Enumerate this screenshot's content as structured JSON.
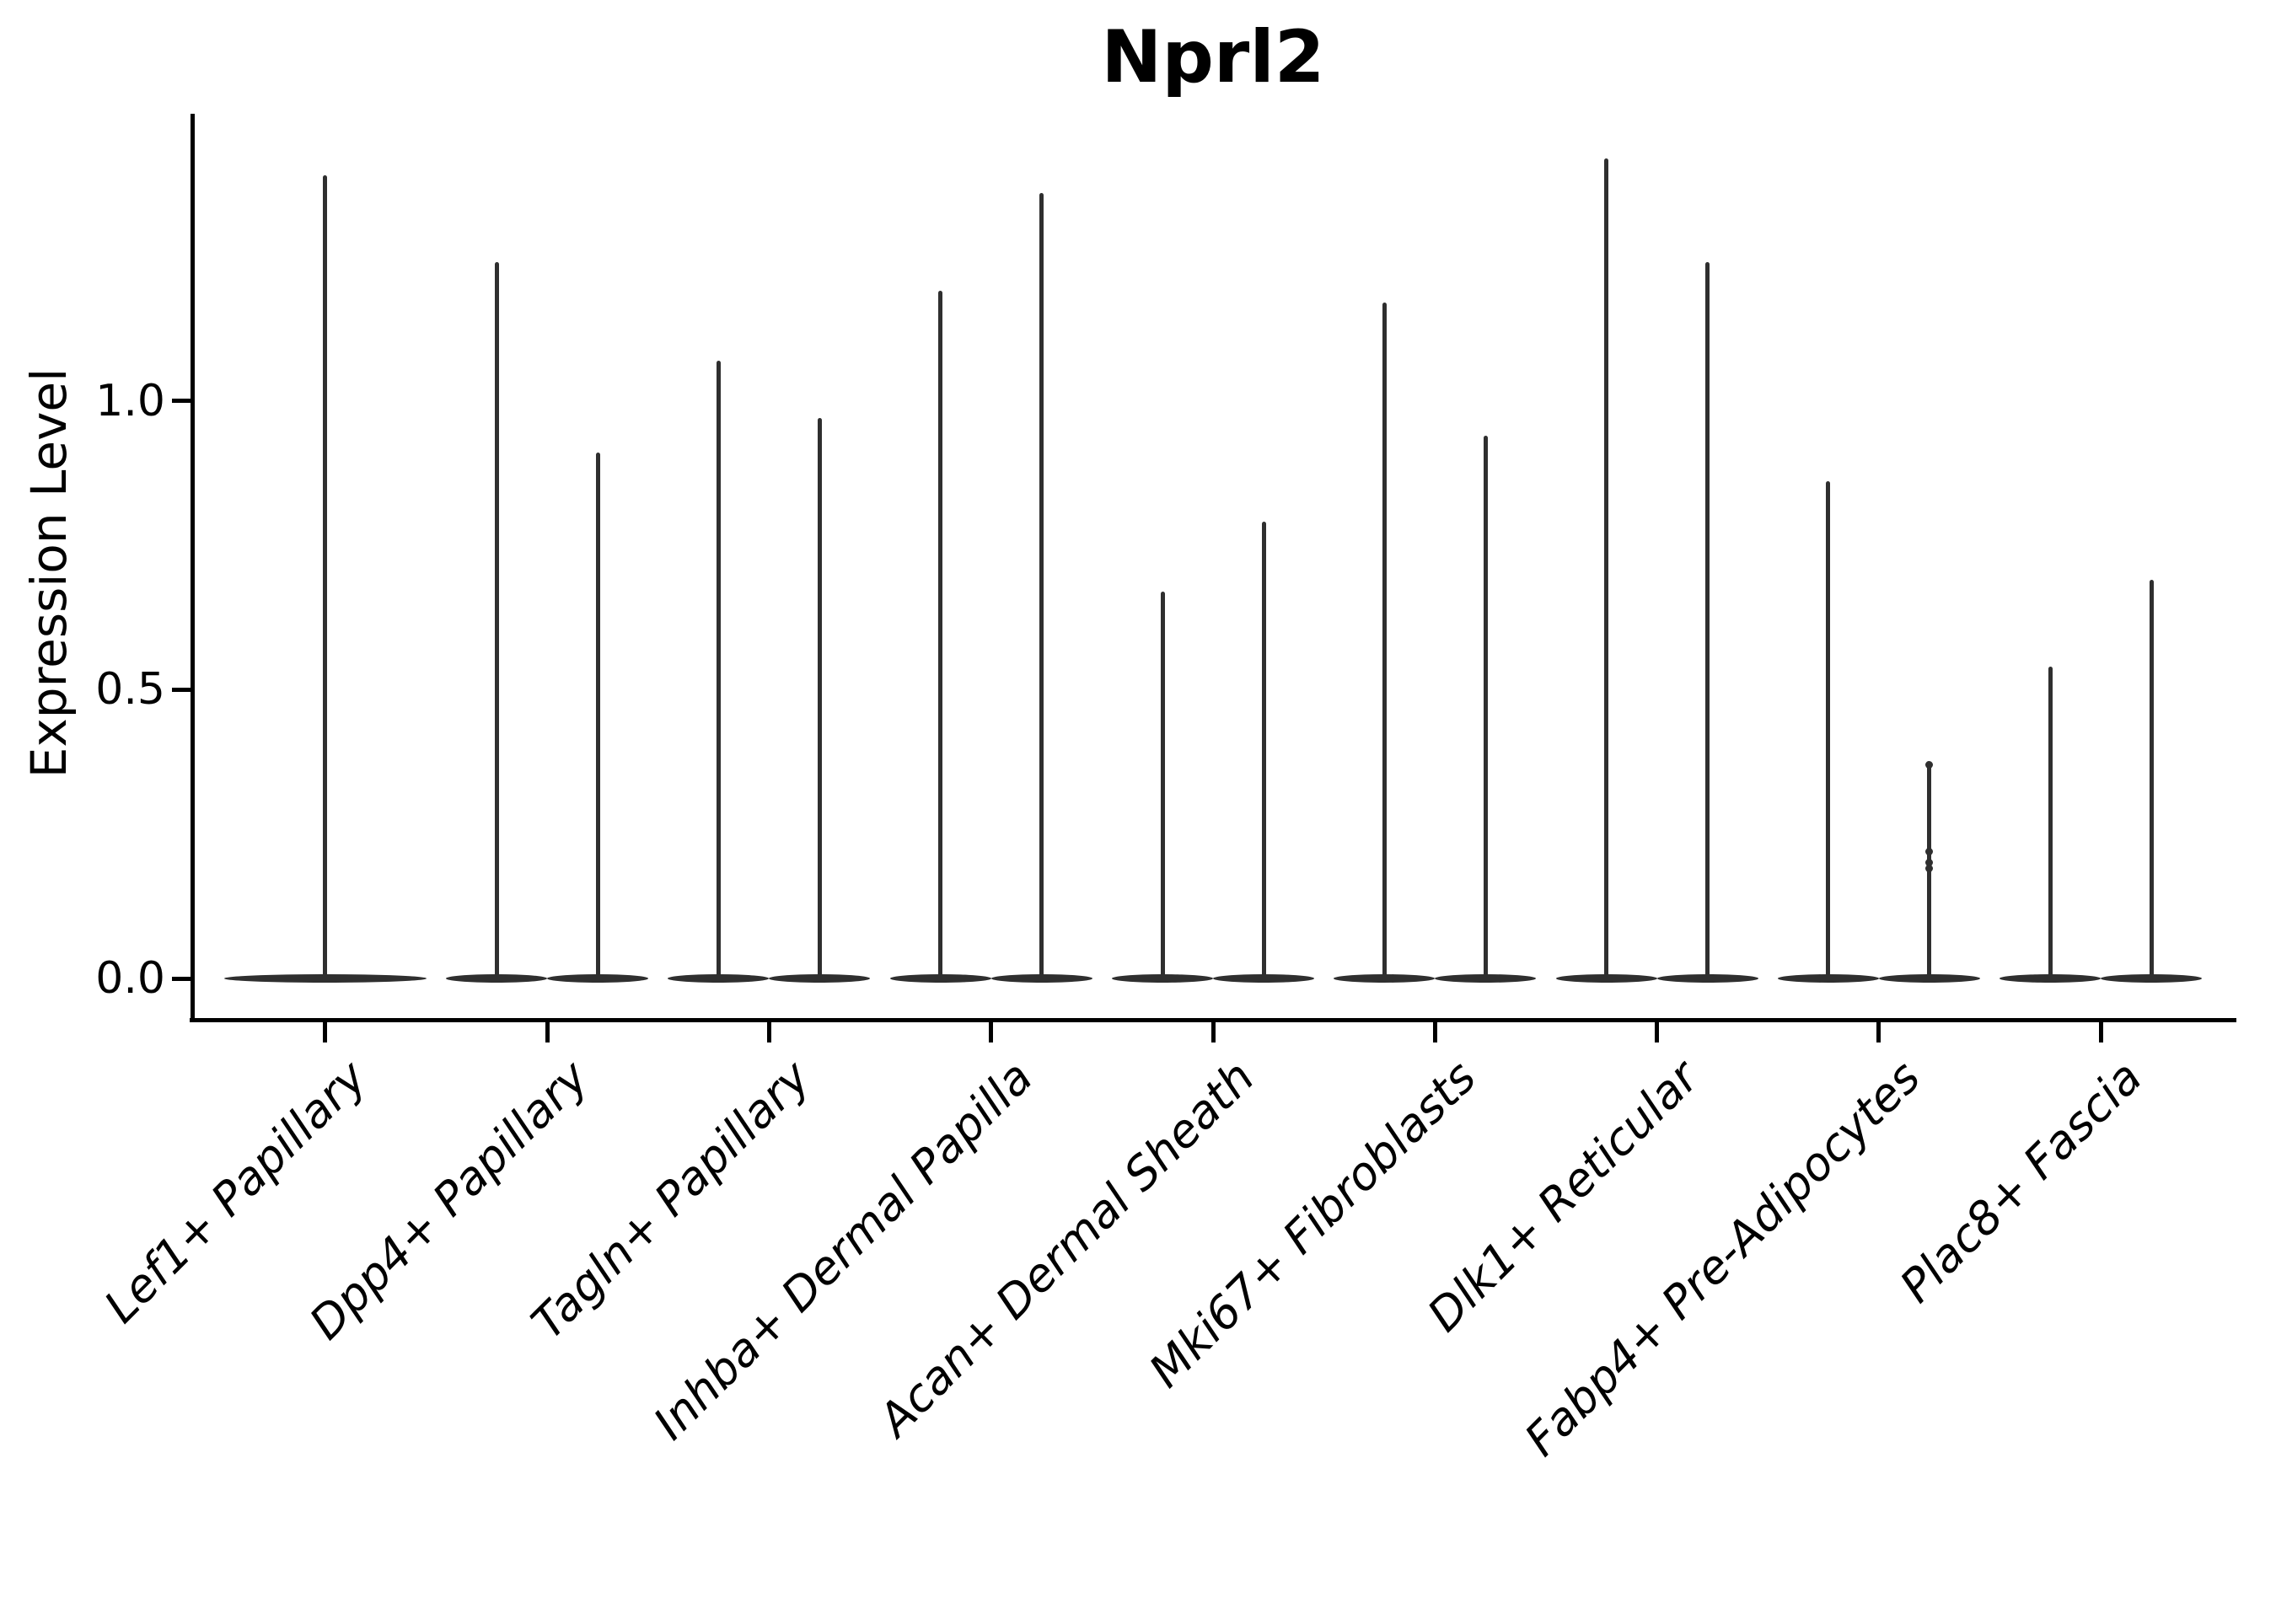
{
  "chart_data": {
    "type": "violin",
    "title": "Nprl2",
    "xlabel": "",
    "ylabel": "Expression Level",
    "ylim": [
      -0.07,
      1.5
    ],
    "yticks": [
      0.0,
      0.5,
      1.0
    ],
    "ytick_labels": [
      "0.0",
      "0.5",
      "1.0"
    ],
    "grid": false,
    "legend": "none",
    "x_tick_label_rotation_deg": 45,
    "x_tick_label_style": "italic",
    "categories": [
      "Lef1+ Papillary",
      "Dpp4+ Papillary",
      "Tagln+ Papillary",
      "Inhba+ Dermal Papilla",
      "Acan+ Dermal Sheath",
      "Mki67+ Fibroblasts",
      "Dlk1+ Reticular",
      "Fabp4+ Pre-Adipocytes",
      "Plac8+ Fascia"
    ],
    "description": "Violin plot of Nprl2 expression per fibroblast subtype; expression is near zero for most cells, so each violin renders as a wide flat base at 0 with a thin central spike rising to the maximum expression value. Categories 2-9 each contain two side-by-side violins; category 1 contains a single full-width violin.",
    "violins": [
      {
        "category": "Lef1+ Papillary",
        "spike_maxima": [
          1.39
        ]
      },
      {
        "category": "Dpp4+ Papillary",
        "spike_maxima": [
          1.24,
          0.91
        ]
      },
      {
        "category": "Tagln+ Papillary",
        "spike_maxima": [
          1.07,
          0.97
        ]
      },
      {
        "category": "Inhba+ Dermal Papilla",
        "spike_maxima": [
          1.19,
          1.36
        ]
      },
      {
        "category": "Acan+ Dermal Sheath",
        "spike_maxima": [
          0.67,
          0.79
        ]
      },
      {
        "category": "Mki67+ Fibroblasts",
        "spike_maxima": [
          1.17,
          0.94
        ]
      },
      {
        "category": "Dlk1+ Reticular",
        "spike_maxima": [
          1.42,
          1.24
        ]
      },
      {
        "category": "Fabp4+ Pre-Adipocytes",
        "spike_maxima": [
          0.86,
          0.37
        ],
        "outlier_points": [
          {
            "violin": 2,
            "value": 0.37
          },
          {
            "violin": 2,
            "value": 0.22
          },
          {
            "violin": 2,
            "value": 0.2
          },
          {
            "violin": 2,
            "value": 0.19
          }
        ]
      },
      {
        "category": "Plac8+ Fascia",
        "spike_maxima": [
          0.54,
          0.69
        ]
      }
    ],
    "colors": {
      "violin_fill": "#2f2f2f",
      "axis": "#000000",
      "text": "#000000",
      "background": "#ffffff"
    }
  }
}
